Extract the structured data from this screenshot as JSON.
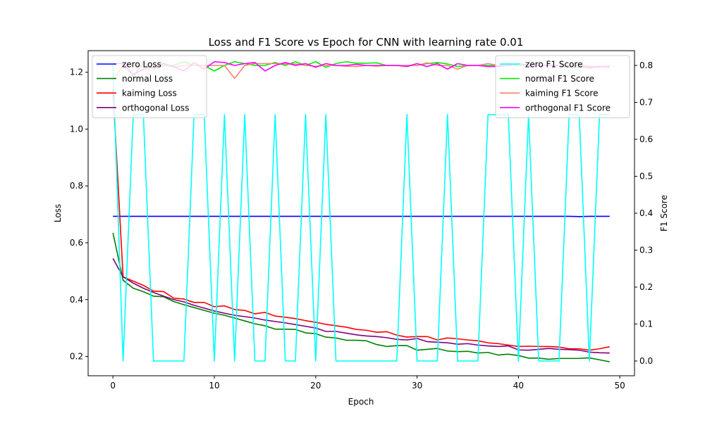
{
  "chart_data": {
    "type": "line",
    "title": "Loss and F1 Score vs Epoch for CNN with learning rate 0.01",
    "xlabel": "Epoch",
    "ylabel": "Loss",
    "ylabel_right": "F1 Score",
    "xlim": [
      -2.45,
      51.45
    ],
    "ylim": [
      0.132,
      1.276
    ],
    "ylim_right": [
      -0.04,
      0.84
    ],
    "x_ticks": [
      0,
      10,
      20,
      30,
      40,
      50
    ],
    "y_ticks": [
      0.2,
      0.4,
      0.6,
      0.8,
      1.0,
      1.2
    ],
    "y_ticks_right": [
      0.0,
      0.1,
      0.2,
      0.3,
      0.4,
      0.5,
      0.6,
      0.7,
      0.8
    ],
    "grid": false,
    "legend_left": "top-left",
    "legend_right": "top-right",
    "x": [
      0,
      1,
      2,
      3,
      4,
      5,
      6,
      7,
      8,
      9,
      10,
      11,
      12,
      13,
      14,
      15,
      16,
      17,
      18,
      19,
      20,
      21,
      22,
      23,
      24,
      25,
      26,
      27,
      28,
      29,
      30,
      31,
      32,
      33,
      34,
      35,
      36,
      37,
      38,
      39,
      40,
      41,
      42,
      43,
      44,
      45,
      46,
      47,
      48,
      49
    ],
    "series": [
      {
        "name": "zero Loss",
        "axis": "left",
        "color": "#0000ff",
        "values": [
          0.693,
          0.693,
          0.693,
          0.693,
          0.693,
          0.693,
          0.693,
          0.693,
          0.693,
          0.693,
          0.693,
          0.693,
          0.693,
          0.693,
          0.693,
          0.693,
          0.693,
          0.693,
          0.693,
          0.693,
          0.693,
          0.693,
          0.693,
          0.693,
          0.693,
          0.693,
          0.693,
          0.693,
          0.693,
          0.693,
          0.693,
          0.693,
          0.693,
          0.693,
          0.693,
          0.693,
          0.693,
          0.693,
          0.693,
          0.693,
          0.693,
          0.693,
          0.693,
          0.693,
          0.693,
          0.693,
          0.692,
          0.693,
          0.693,
          0.693
        ]
      },
      {
        "name": "normal Loss",
        "axis": "left",
        "color": "#008000",
        "values": [
          0.635,
          0.468,
          0.44,
          0.428,
          0.412,
          0.41,
          0.393,
          0.382,
          0.372,
          0.362,
          0.352,
          0.345,
          0.335,
          0.325,
          0.315,
          0.308,
          0.296,
          0.296,
          0.295,
          0.283,
          0.28,
          0.268,
          0.265,
          0.257,
          0.257,
          0.255,
          0.242,
          0.235,
          0.238,
          0.238,
          0.222,
          0.225,
          0.228,
          0.219,
          0.217,
          0.218,
          0.212,
          0.214,
          0.205,
          0.208,
          0.203,
          0.194,
          0.194,
          0.19,
          0.193,
          0.193,
          0.193,
          0.195,
          0.188,
          0.181
        ]
      },
      {
        "name": "kaiming Loss",
        "axis": "left",
        "color": "#ff0000",
        "values": [
          1.14,
          0.48,
          0.465,
          0.45,
          0.43,
          0.428,
          0.405,
          0.402,
          0.39,
          0.39,
          0.375,
          0.378,
          0.365,
          0.362,
          0.35,
          0.355,
          0.342,
          0.338,
          0.333,
          0.326,
          0.32,
          0.313,
          0.308,
          0.303,
          0.295,
          0.292,
          0.285,
          0.287,
          0.275,
          0.268,
          0.27,
          0.27,
          0.258,
          0.265,
          0.262,
          0.258,
          0.255,
          0.248,
          0.245,
          0.24,
          0.235,
          0.236,
          0.235,
          0.235,
          0.233,
          0.227,
          0.227,
          0.222,
          0.227,
          0.234
        ]
      },
      {
        "name": "orthogonal Loss",
        "axis": "left",
        "color": "#800080",
        "values": [
          0.545,
          0.48,
          0.458,
          0.44,
          0.425,
          0.412,
          0.4,
          0.392,
          0.38,
          0.37,
          0.36,
          0.352,
          0.345,
          0.34,
          0.335,
          0.328,
          0.323,
          0.318,
          0.312,
          0.306,
          0.3,
          0.288,
          0.288,
          0.282,
          0.276,
          0.272,
          0.27,
          0.266,
          0.26,
          0.258,
          0.263,
          0.252,
          0.25,
          0.248,
          0.243,
          0.245,
          0.24,
          0.237,
          0.235,
          0.237,
          0.223,
          0.222,
          0.225,
          0.228,
          0.225,
          0.224,
          0.222,
          0.215,
          0.213,
          0.212
        ]
      },
      {
        "name": "zero F1 Score",
        "axis": "right",
        "color": "#00ffff",
        "values": [
          0.8,
          0.0,
          0.667,
          0.667,
          0.0,
          0.0,
          0.0,
          0.0,
          0.667,
          0.667,
          0.0,
          0.667,
          0.0,
          0.667,
          0.0,
          0.0,
          0.667,
          0.0,
          0.0,
          0.667,
          0.0,
          0.667,
          0.0,
          0.0,
          0.0,
          0.0,
          0.0,
          0.0,
          0.0,
          0.667,
          0.0,
          0.0,
          0.0,
          0.667,
          0.0,
          0.0,
          0.0,
          0.667,
          0.667,
          0.667,
          0.0,
          0.667,
          0.0,
          0.0,
          0.0,
          0.667,
          0.667,
          0.0,
          0.667,
          0.667
        ]
      },
      {
        "name": "normal F1 Score",
        "axis": "right",
        "color": "#00ee00",
        "values": [
          0.805,
          0.805,
          0.77,
          0.81,
          0.79,
          0.8,
          0.8,
          0.81,
          0.8,
          0.8,
          0.785,
          0.8,
          0.81,
          0.805,
          0.8,
          0.8,
          0.808,
          0.8,
          0.81,
          0.8,
          0.81,
          0.795,
          0.805,
          0.81,
          0.806,
          0.806,
          0.807,
          0.8,
          0.8,
          0.8,
          0.8,
          0.805,
          0.808,
          0.804,
          0.797,
          0.8,
          0.8,
          0.8,
          0.8,
          0.805,
          0.8,
          0.8,
          0.8,
          0.8,
          0.8,
          0.795,
          0.795,
          0.797,
          0.797,
          0.797
        ]
      },
      {
        "name": "kaiming F1 Score",
        "axis": "right",
        "color": "#fa8072",
        "values": [
          0.76,
          0.8,
          0.8,
          0.795,
          0.8,
          0.805,
          0.795,
          0.8,
          0.8,
          0.8,
          0.8,
          0.8,
          0.765,
          0.8,
          0.805,
          0.805,
          0.805,
          0.804,
          0.804,
          0.8,
          0.798,
          0.8,
          0.8,
          0.798,
          0.797,
          0.8,
          0.798,
          0.8,
          0.8,
          0.8,
          0.8,
          0.807,
          0.8,
          0.8,
          0.79,
          0.8,
          0.8,
          0.805,
          0.8,
          0.8,
          0.805,
          0.8,
          0.8,
          0.8,
          0.8,
          0.8,
          0.8,
          0.798,
          0.795,
          0.8
        ]
      },
      {
        "name": "orthogonal F1 Score",
        "axis": "right",
        "color": "#ff00ff",
        "values": [
          0.805,
          0.805,
          0.775,
          0.79,
          0.795,
          0.805,
          0.797,
          0.785,
          0.808,
          0.79,
          0.81,
          0.808,
          0.8,
          0.805,
          0.808,
          0.785,
          0.8,
          0.808,
          0.8,
          0.805,
          0.795,
          0.805,
          0.8,
          0.8,
          0.803,
          0.8,
          0.8,
          0.8,
          0.8,
          0.797,
          0.805,
          0.797,
          0.805,
          0.79,
          0.805,
          0.8,
          0.8,
          0.797,
          0.797,
          0.8,
          0.805,
          0.8,
          0.8,
          0.8,
          0.8,
          0.8,
          0.8,
          0.793,
          0.797,
          0.795
        ]
      }
    ]
  }
}
